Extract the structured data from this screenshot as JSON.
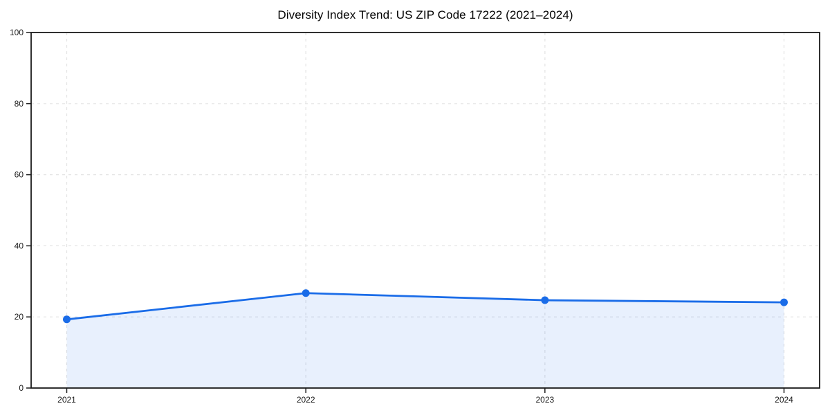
{
  "chart_data": {
    "type": "line",
    "title": "Diversity Index Trend: US ZIP Code 17222 (2021–2024)",
    "x": [
      "2021",
      "2022",
      "2023",
      "2024"
    ],
    "series": [
      {
        "name": "Diversity Index",
        "values": [
          19.3,
          26.7,
          24.7,
          24.1
        ]
      }
    ],
    "xlabel": "",
    "ylabel": "",
    "ylim": [
      0,
      100
    ],
    "yticks": [
      0,
      20,
      40,
      60,
      80,
      100
    ],
    "grid": "dashed-both-axes",
    "legend": "none",
    "area_fill": true,
    "marker": "circle",
    "colors": {
      "line": "#1a6ce8",
      "marker": "#1a6ce8",
      "area": "#1a6ce8",
      "area_opacity": 0.1,
      "grid": "#e3e3e3",
      "axis_border": "#1a1a1a",
      "tick_label": "#1a1a1a",
      "title": "#000000",
      "background": "#ffffff"
    }
  }
}
